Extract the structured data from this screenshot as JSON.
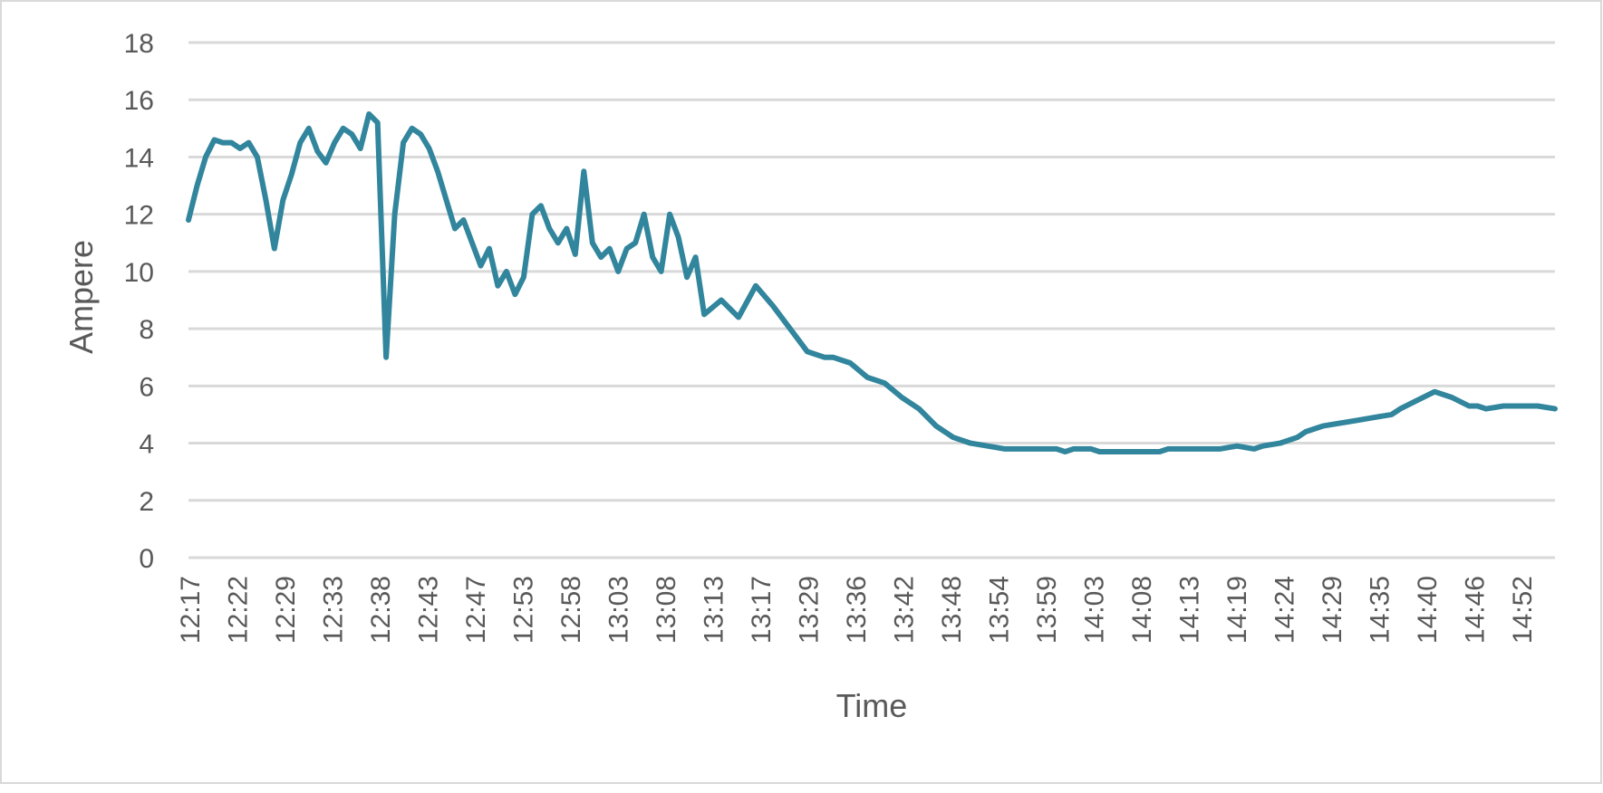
{
  "chart_data": {
    "type": "line",
    "title": "",
    "xlabel": "Time",
    "ylabel": "Ampere",
    "ylim": [
      0,
      18
    ],
    "yticks": [
      "0",
      "2",
      "4",
      "6",
      "8",
      "10",
      "12",
      "14",
      "16",
      "18"
    ],
    "grid": true,
    "legend": "none",
    "x_tick_labels": [
      "12:17",
      "12:22",
      "12:29",
      "12:33",
      "12:38",
      "12:43",
      "12:47",
      "12:53",
      "12:58",
      "13:03",
      "13:08",
      "13:13",
      "13:17",
      "13:29",
      "13:36",
      "13:42",
      "13:48",
      "13:54",
      "13:59",
      "14:03",
      "14:08",
      "14:13",
      "14:19",
      "14:24",
      "14:29",
      "14:35",
      "14:40",
      "14:46",
      "14:52"
    ],
    "x_range": [
      "12:17",
      "14:56"
    ],
    "series": [
      {
        "color": "#31859c",
        "x": [
          "12:17",
          "12:18",
          "12:19",
          "12:20",
          "12:21",
          "12:22",
          "12:23",
          "12:24",
          "12:25",
          "12:26",
          "12:27",
          "12:28",
          "12:29",
          "12:30",
          "12:31",
          "12:32",
          "12:33",
          "12:34",
          "12:35",
          "12:36",
          "12:37",
          "12:38",
          "12:39",
          "12:40",
          "12:41",
          "12:42",
          "12:43",
          "12:44",
          "12:45",
          "12:46",
          "12:47",
          "12:48",
          "12:49",
          "12:50",
          "12:51",
          "12:52",
          "12:53",
          "12:54",
          "12:55",
          "12:56",
          "12:57",
          "12:58",
          "12:59",
          "13:00",
          "13:01",
          "13:02",
          "13:03",
          "13:04",
          "13:05",
          "13:06",
          "13:07",
          "13:08",
          "13:09",
          "13:10",
          "13:11",
          "13:12",
          "13:13",
          "13:14",
          "13:15",
          "13:16",
          "13:17",
          "13:19",
          "13:21",
          "13:23",
          "13:25",
          "13:27",
          "13:29",
          "13:31",
          "13:32",
          "13:34",
          "13:36",
          "13:38",
          "13:40",
          "13:42",
          "13:44",
          "13:46",
          "13:48",
          "13:50",
          "13:52",
          "13:54",
          "13:56",
          "13:58",
          "13:59",
          "14:00",
          "14:01",
          "14:02",
          "14:03",
          "14:05",
          "14:06",
          "14:08",
          "14:10",
          "14:11",
          "14:13",
          "14:15",
          "14:17",
          "14:19",
          "14:21",
          "14:22",
          "14:24",
          "14:26",
          "14:27",
          "14:29",
          "14:31",
          "14:33",
          "14:35",
          "14:37",
          "14:38",
          "14:40",
          "14:42",
          "14:44",
          "14:46",
          "14:47",
          "14:48",
          "14:50",
          "14:52",
          "14:54",
          "14:56"
        ],
        "values": [
          11.8,
          13.0,
          14.0,
          14.6,
          14.5,
          14.5,
          14.3,
          14.5,
          14.0,
          12.5,
          10.8,
          12.5,
          13.4,
          14.5,
          15.0,
          14.2,
          13.8,
          14.5,
          15.0,
          14.8,
          14.3,
          15.5,
          15.2,
          7.0,
          12.0,
          14.5,
          15.0,
          14.8,
          14.3,
          13.5,
          12.5,
          11.5,
          11.8,
          11.0,
          10.2,
          10.8,
          9.5,
          10.0,
          9.2,
          9.8,
          12.0,
          12.3,
          11.5,
          11.0,
          11.5,
          10.6,
          13.5,
          11.0,
          10.5,
          10.8,
          10.0,
          10.8,
          11.0,
          12.0,
          10.5,
          10.0,
          12.0,
          11.2,
          9.8,
          10.5,
          8.5,
          9.0,
          8.4,
          9.5,
          8.8,
          8.0,
          7.2,
          7.0,
          7.0,
          6.8,
          6.3,
          6.1,
          5.6,
          5.2,
          4.6,
          4.2,
          4.0,
          3.9,
          3.8,
          3.8,
          3.8,
          3.8,
          3.7,
          3.8,
          3.8,
          3.8,
          3.7,
          3.7,
          3.7,
          3.7,
          3.7,
          3.8,
          3.8,
          3.8,
          3.8,
          3.9,
          3.8,
          3.9,
          4.0,
          4.2,
          4.4,
          4.6,
          4.7,
          4.8,
          4.9,
          5.0,
          5.2,
          5.5,
          5.8,
          5.6,
          5.3,
          5.3,
          5.2,
          5.3,
          5.3,
          5.3,
          5.2
        ]
      }
    ]
  }
}
